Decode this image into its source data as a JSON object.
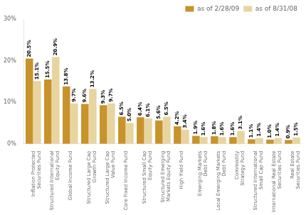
{
  "chart_data": {
    "type": "bar",
    "categories": [
      "Inflation Protected\nSecurities Fund",
      "Structured International\nEquity Fund",
      "Global Income Fund",
      "Structured Large Cap\nGrowth Fund",
      "Structured Large Cap\nValue Fund",
      "Core Fixed Income Fund",
      "Structured Small Cap\nEquity Fund",
      "Structured Emerging\nMarkets Equity Fund",
      "High Yield Fund",
      "Emerging Markets\nDebt Fund",
      "Local Emerging Markets\nDebt Fund",
      "Commodity\nStrategy Fund",
      "Structured International\nSmall Cap Fund",
      "International Real Estate\nSecurities Fund",
      "Real Estate\nSecurities Fund"
    ],
    "series": [
      {
        "name": "as of 2/28/09",
        "color": "#C8932A",
        "values": [
          20.5,
          15.5,
          13.8,
          9.6,
          9.3,
          6.5,
          6.4,
          5.6,
          4.2,
          1.9,
          1.8,
          1.6,
          1.1,
          1.0,
          0.9
        ],
        "value_labels": [
          "20.5%",
          "15.5%",
          "13.8%",
          "9.6%",
          "9.3%",
          "6.5%",
          "6.4%",
          "5.6%",
          "4.2%",
          "1.9%",
          "1.8%",
          "1.6%",
          "1.1%",
          "1.0%",
          "0.9%"
        ]
      },
      {
        "name": "as of 8/31/08",
        "color": "#E8D49E",
        "values": [
          15.1,
          20.9,
          9.7,
          13.2,
          9.7,
          5.0,
          6.1,
          6.5,
          3.4,
          1.6,
          1.6,
          3.1,
          1.4,
          1.4,
          1.5
        ],
        "value_labels": [
          "15.1%",
          "20.9%",
          "9.7%",
          "13.2%",
          "9.7%",
          "5.0%",
          "6.1%",
          "6.5%",
          "3.4%",
          "1.6%",
          "1.6%",
          "3.1%",
          "1.4%",
          "1.4%",
          "1.5%"
        ]
      }
    ],
    "ylim": [
      0,
      30
    ],
    "yticks": [
      {
        "value": 0,
        "label": "0%"
      },
      {
        "value": 10,
        "label": "10%"
      },
      {
        "value": 20,
        "label": "20%"
      },
      {
        "value": 30,
        "label": "30%"
      }
    ],
    "grid": false,
    "legend": "upper right",
    "data_labels": true
  }
}
